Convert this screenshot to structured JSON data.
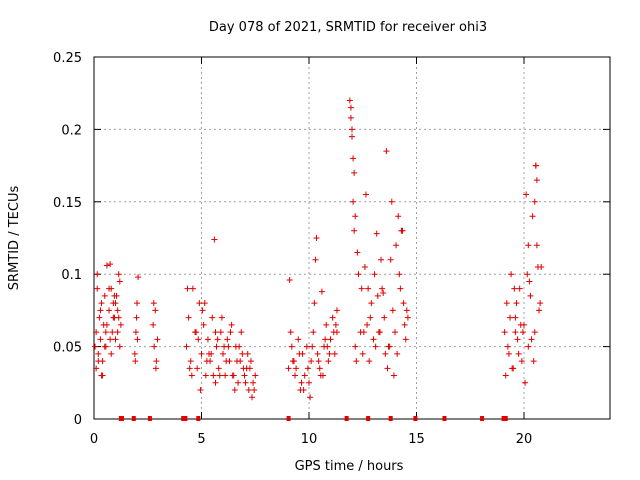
{
  "chart_data": {
    "type": "scatter",
    "title": "Day 078 of 2021, SRMTID for receiver ohi3",
    "xlabel": "GPS time / hours",
    "ylabel": "SRMTID / TECUs",
    "xlim": [
      0,
      24
    ],
    "ylim": [
      0,
      0.25
    ],
    "xticks": [
      0,
      5,
      10,
      15,
      20
    ],
    "yticks": [
      0,
      0.05,
      0.1,
      0.15,
      0.2,
      0.25
    ],
    "xtick_labels": [
      "0",
      "5",
      "10",
      "15",
      "20"
    ],
    "ytick_labels": [
      "0",
      "0.05",
      "0.1",
      "0.15",
      "0.2",
      "0.25"
    ],
    "grid": true,
    "marker": "+",
    "series": [
      {
        "name": "SRMTID",
        "color": "#e00000",
        "x": [
          0.05,
          0.1,
          0.15,
          0.2,
          0.25,
          0.3,
          0.35,
          0.4,
          0.45,
          0.5,
          0.55,
          0.6,
          0.7,
          0.75,
          0.8,
          0.85,
          0.9,
          0.95,
          1.0,
          1.05,
          1.1,
          1.15,
          1.2,
          1.25,
          0.1,
          0.2,
          0.3,
          0.4,
          0.5,
          0.6,
          0.7,
          0.8,
          0.9,
          1.0,
          1.1,
          1.2,
          0.15,
          0.35,
          0.55,
          0.75,
          0.95,
          1.15,
          1.9,
          1.95,
          2.0,
          2.05,
          1.92,
          1.98,
          2.02,
          2.75,
          2.8,
          2.85,
          2.9,
          2.95,
          2.78,
          2.88,
          4.3,
          4.4,
          4.5,
          4.6,
          4.7,
          4.8,
          4.9,
          5.0,
          5.1,
          5.2,
          5.3,
          5.4,
          5.5,
          5.6,
          5.7,
          5.8,
          5.9,
          6.0,
          6.1,
          6.2,
          6.3,
          6.4,
          6.5,
          6.6,
          6.7,
          6.8,
          6.9,
          7.0,
          7.1,
          7.2,
          7.3,
          7.4,
          7.5,
          4.35,
          4.55,
          4.75,
          4.95,
          5.15,
          5.35,
          5.55,
          5.75,
          5.95,
          6.15,
          6.35,
          6.55,
          6.75,
          6.95,
          7.15,
          7.35,
          4.45,
          4.85,
          5.25,
          5.65,
          6.05,
          6.45,
          6.85,
          7.25,
          5.05,
          5.45,
          5.85,
          6.25,
          6.65,
          7.05,
          7.45,
          5.65,
          9.1,
          9.2,
          9.3,
          9.4,
          9.5,
          9.6,
          9.7,
          9.8,
          9.9,
          10.0,
          10.1,
          10.2,
          10.3,
          10.4,
          10.5,
          10.6,
          10.7,
          10.8,
          10.9,
          11.0,
          11.1,
          11.2,
          11.3,
          9.15,
          9.35,
          9.55,
          9.75,
          9.95,
          10.15,
          10.35,
          10.55,
          10.75,
          10.95,
          11.15,
          11.3,
          9.25,
          9.65,
          10.05,
          10.45,
          10.85,
          11.25,
          9.05,
          10.25,
          10.65,
          11.9,
          11.95,
          12.0,
          12.05,
          12.1,
          12.15,
          12.2,
          12.3,
          12.4,
          12.5,
          12.6,
          12.7,
          12.8,
          12.9,
          13.0,
          13.1,
          13.2,
          13.3,
          13.4,
          13.5,
          13.6,
          13.7,
          13.8,
          13.9,
          14.0,
          14.1,
          14.2,
          14.3,
          14.4,
          14.5,
          14.6,
          11.95,
          12.0,
          12.05,
          12.1,
          12.15,
          12.25,
          12.45,
          12.65,
          12.85,
          13.05,
          13.25,
          13.45,
          13.65,
          13.85,
          14.05,
          14.25,
          14.45,
          13.15,
          13.55,
          13.95,
          14.35,
          12.75,
          13.35,
          14.15,
          14.55,
          12.55,
          13.75,
          19.1,
          19.2,
          19.3,
          19.4,
          19.5,
          19.6,
          19.7,
          19.8,
          19.9,
          20.0,
          20.1,
          20.2,
          20.3,
          20.4,
          20.5,
          20.6,
          20.7,
          20.8,
          19.15,
          19.35,
          19.55,
          19.75,
          19.95,
          20.15,
          20.35,
          20.55,
          20.75,
          19.25,
          19.45,
          19.65,
          19.85,
          20.05,
          20.25,
          20.45,
          20.65,
          19.6,
          20.2,
          20.6,
          20.55,
          20.5
        ],
        "y": [
          0.05,
          0.06,
          0.09,
          0.045,
          0.07,
          0.055,
          0.08,
          0.04,
          0.065,
          0.085,
          0.05,
          0.106,
          0.075,
          0.055,
          0.09,
          0.06,
          0.08,
          0.07,
          0.055,
          0.085,
          0.06,
          0.1,
          0.05,
          0.065,
          0.035,
          0.04,
          0.075,
          0.03,
          0.05,
          0.065,
          0.09,
          0.045,
          0.07,
          0.08,
          0.075,
          0.095,
          0.1,
          0.03,
          0.06,
          0.107,
          0.085,
          0.07,
          0.045,
          0.06,
          0.08,
          0.098,
          0.04,
          0.07,
          0.055,
          0.065,
          0.05,
          0.075,
          0.04,
          0.055,
          0.08,
          0.035,
          0.05,
          0.07,
          0.04,
          0.09,
          0.06,
          0.035,
          0.08,
          0.045,
          0.065,
          0.03,
          0.055,
          0.04,
          0.07,
          0.124,
          0.05,
          0.035,
          0.06,
          0.045,
          0.03,
          0.055,
          0.04,
          0.065,
          0.03,
          0.05,
          0.025,
          0.04,
          0.045,
          0.03,
          0.035,
          0.02,
          0.04,
          0.025,
          0.03,
          0.09,
          0.03,
          0.06,
          0.02,
          0.08,
          0.045,
          0.03,
          0.055,
          0.07,
          0.04,
          0.06,
          0.02,
          0.05,
          0.035,
          0.045,
          0.015,
          0.035,
          0.055,
          0.04,
          0.025,
          0.05,
          0.03,
          0.06,
          0.035,
          0.075,
          0.045,
          0.03,
          0.05,
          0.04,
          0.025,
          0.02,
          0.06,
          0.096,
          0.05,
          0.04,
          0.035,
          0.055,
          0.02,
          0.045,
          0.03,
          0.05,
          0.025,
          0.04,
          0.06,
          0.11,
          0.045,
          0.035,
          0.088,
          0.05,
          0.065,
          0.04,
          0.055,
          0.07,
          0.045,
          0.06,
          0.06,
          0.03,
          0.045,
          0.02,
          0.035,
          0.05,
          0.125,
          0.03,
          0.055,
          0.045,
          0.06,
          0.075,
          0.04,
          0.025,
          0.015,
          0.04,
          0.05,
          0.065,
          0.035,
          0.08,
          0.03,
          0.22,
          0.208,
          0.195,
          0.15,
          0.13,
          0.05,
          0.04,
          0.1,
          0.06,
          0.045,
          0.105,
          0.065,
          0.04,
          0.08,
          0.055,
          0.05,
          0.085,
          0.06,
          0.09,
          0.07,
          0.185,
          0.05,
          0.11,
          0.075,
          0.06,
          0.045,
          0.1,
          0.13,
          0.08,
          0.055,
          0.07,
          0.215,
          0.2,
          0.18,
          0.17,
          0.14,
          0.115,
          0.09,
          0.155,
          0.07,
          0.1,
          0.06,
          0.087,
          0.035,
          0.15,
          0.12,
          0.09,
          0.065,
          0.128,
          0.045,
          0.03,
          0.13,
          0.09,
          0.11,
          0.14,
          0.075,
          0.06,
          0.05,
          0.06,
          0.08,
          0.045,
          0.1,
          0.035,
          0.07,
          0.055,
          0.09,
          0.04,
          0.065,
          0.155,
          0.05,
          0.085,
          0.14,
          0.06,
          0.12,
          0.075,
          0.105,
          0.03,
          0.07,
          0.09,
          0.045,
          0.06,
          0.1,
          0.055,
          0.175,
          0.08,
          0.05,
          0.035,
          0.08,
          0.065,
          0.025,
          0.095,
          0.04,
          0.105,
          0.06,
          0.12,
          0.165,
          0.175,
          0.15
        ]
      }
    ],
    "gap_markers_x": [
      1.25,
      1.3,
      1.85,
      2.6,
      4.15,
      4.25,
      4.85,
      9.05,
      11.75,
      12.75,
      13.8,
      14.95,
      16.3,
      18.05,
      19.05,
      19.15
    ]
  }
}
